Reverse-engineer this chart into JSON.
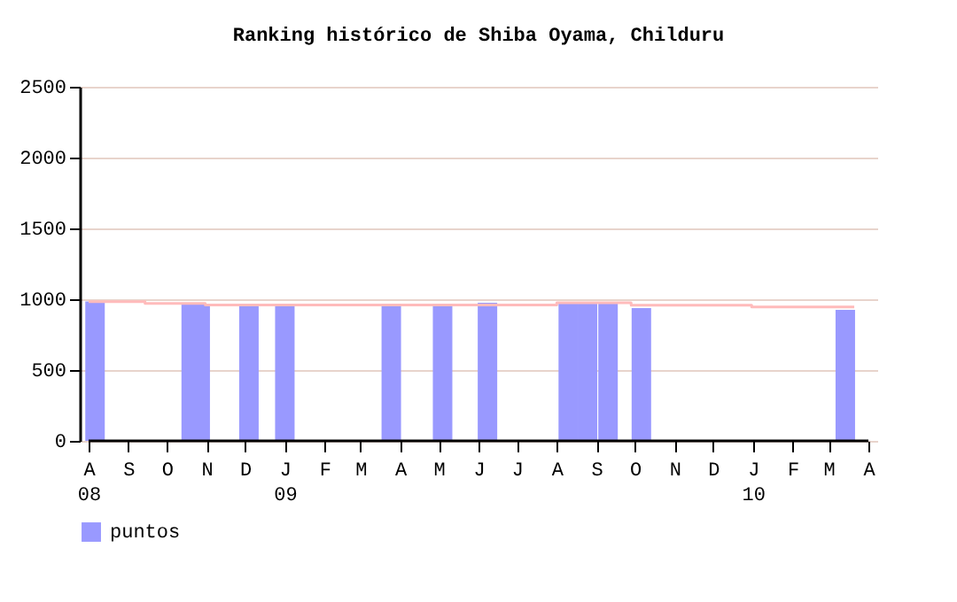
{
  "chart_data": {
    "type": "bar",
    "title": "Ranking histórico de Shiba Oyama, Childuru",
    "series": [
      {
        "name": "puntos",
        "color": "#9999ff",
        "x": [
          "2008-08-06",
          "2008-10-20",
          "2008-10-27",
          "2008-12-04",
          "2009-01-01",
          "2009-03-25",
          "2009-05-04",
          "2009-06-08",
          "2009-08-10",
          "2009-08-25",
          "2009-09-10",
          "2009-10-06",
          "2010-03-14"
        ],
        "values": [
          985,
          975,
          962,
          962,
          962,
          962,
          950,
          975,
          975,
          975,
          975,
          937,
          925
        ]
      },
      {
        "type": "step",
        "color": "#ffbbbb",
        "x": [
          "2008-08-01",
          "2008-09-14",
          "2008-10-31",
          "2009-08-01",
          "2009-09-28",
          "2009-12-31",
          "2010-03-21"
        ],
        "values": [
          983,
          970,
          960,
          975,
          958,
          946,
          946
        ]
      }
    ],
    "xlim": [
      "2008-08-01",
      "2010-04-01"
    ],
    "xticks": [
      {
        "value": "2008-08",
        "label": "A\n08"
      },
      {
        "value": "2008-09",
        "label": "S"
      },
      {
        "value": "2008-10",
        "label": "O"
      },
      {
        "value": "2008-11",
        "label": "N"
      },
      {
        "value": "2008-12",
        "label": "D"
      },
      {
        "value": "2009-01",
        "label": "J\n09"
      },
      {
        "value": "2009-02",
        "label": "F"
      },
      {
        "value": "2009-03",
        "label": "M"
      },
      {
        "value": "2009-04",
        "label": "A"
      },
      {
        "value": "2009-05",
        "label": "M"
      },
      {
        "value": "2009-06",
        "label": "J"
      },
      {
        "value": "2009-07",
        "label": "J"
      },
      {
        "value": "2009-08",
        "label": "A"
      },
      {
        "value": "2009-09",
        "label": "S"
      },
      {
        "value": "2009-10",
        "label": "O"
      },
      {
        "value": "2009-11",
        "label": "N"
      },
      {
        "value": "2009-12",
        "label": "D"
      },
      {
        "value": "2010-01",
        "label": "J\n10"
      },
      {
        "value": "2010-02",
        "label": "F"
      },
      {
        "value": "2010-03",
        "label": "M"
      },
      {
        "value": "2010-04",
        "label": "A"
      }
    ],
    "ylim": [
      0,
      2500
    ],
    "yticks": [
      0,
      500,
      1000,
      1500,
      2000,
      2500
    ],
    "grid": "y",
    "legend": "bottom left"
  }
}
